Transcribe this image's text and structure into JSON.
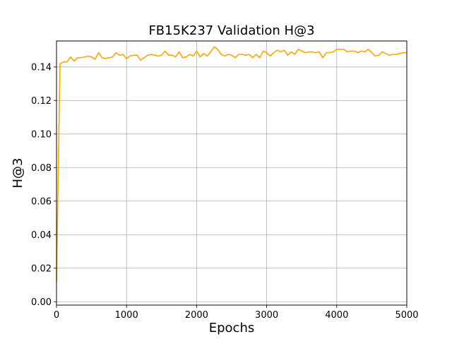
{
  "chart_data": {
    "type": "line",
    "title": "FB15K237 Validation H@3",
    "xlabel": "Epochs",
    "ylabel": "H@3",
    "xlim": [
      0,
      5000
    ],
    "ylim": [
      -0.002,
      0.1555
    ],
    "xticks": [
      0,
      1000,
      2000,
      3000,
      4000,
      5000
    ],
    "yticks": [
      0.0,
      0.02,
      0.04,
      0.06,
      0.08,
      0.1,
      0.12,
      0.14
    ],
    "xtick_labels": [
      "0",
      "1000",
      "2000",
      "3000",
      "4000",
      "5000"
    ],
    "ytick_labels": [
      "0.00",
      "0.02",
      "0.04",
      "0.06",
      "0.08",
      "0.10",
      "0.12",
      "0.14"
    ],
    "grid": true,
    "line_color": "#FFA500",
    "series": [
      {
        "x": [
          0,
          50,
          100,
          150,
          200,
          250,
          300,
          350,
          400,
          450,
          500,
          550,
          600,
          650,
          700,
          750,
          800,
          850,
          900,
          950,
          1000,
          1050,
          1100,
          1150,
          1200,
          1250,
          1300,
          1350,
          1400,
          1450,
          1500,
          1550,
          1600,
          1650,
          1700,
          1750,
          1800,
          1850,
          1900,
          1950,
          2000,
          2050,
          2100,
          2150,
          2200,
          2250,
          2300,
          2350,
          2400,
          2450,
          2500,
          2550,
          2600,
          2650,
          2700,
          2750,
          2800,
          2850,
          2900,
          2950,
          3000,
          3050,
          3100,
          3150,
          3200,
          3250,
          3300,
          3350,
          3400,
          3450,
          3500,
          3550,
          3600,
          3650,
          3700,
          3750,
          3800,
          3850,
          3900,
          3950,
          4000,
          4050,
          4100,
          4150,
          4200,
          4250,
          4300,
          4350,
          4400,
          4450,
          4500,
          4550,
          4600,
          4650,
          4700,
          4750,
          4800,
          4850,
          4900,
          4950,
          5000
        ],
        "values": [
          0.012,
          0.142,
          0.143,
          0.143,
          0.146,
          0.1435,
          0.1455,
          0.1455,
          0.146,
          0.1465,
          0.146,
          0.1445,
          0.1485,
          0.1455,
          0.145,
          0.1455,
          0.146,
          0.1485,
          0.147,
          0.1475,
          0.145,
          0.1465,
          0.147,
          0.147,
          0.144,
          0.1455,
          0.147,
          0.1475,
          0.147,
          0.1465,
          0.147,
          0.1495,
          0.147,
          0.147,
          0.146,
          0.149,
          0.1455,
          0.146,
          0.1475,
          0.1465,
          0.1495,
          0.146,
          0.148,
          0.1465,
          0.149,
          0.152,
          0.1505,
          0.1475,
          0.1465,
          0.1475,
          0.147,
          0.1455,
          0.1475,
          0.1475,
          0.147,
          0.1475,
          0.1455,
          0.1475,
          0.1455,
          0.1495,
          0.1485,
          0.1465,
          0.1485,
          0.15,
          0.149,
          0.15,
          0.147,
          0.149,
          0.1475,
          0.1505,
          0.1495,
          0.1485,
          0.149,
          0.149,
          0.1485,
          0.149,
          0.1455,
          0.1485,
          0.1485,
          0.149,
          0.1505,
          0.1505,
          0.1505,
          0.149,
          0.1495,
          0.1495,
          0.1485,
          0.1495,
          0.149,
          0.1505,
          0.1485,
          0.1465,
          0.147,
          0.149,
          0.148,
          0.147,
          0.1475,
          0.1475,
          0.148,
          0.1485,
          0.1485
        ]
      }
    ]
  }
}
